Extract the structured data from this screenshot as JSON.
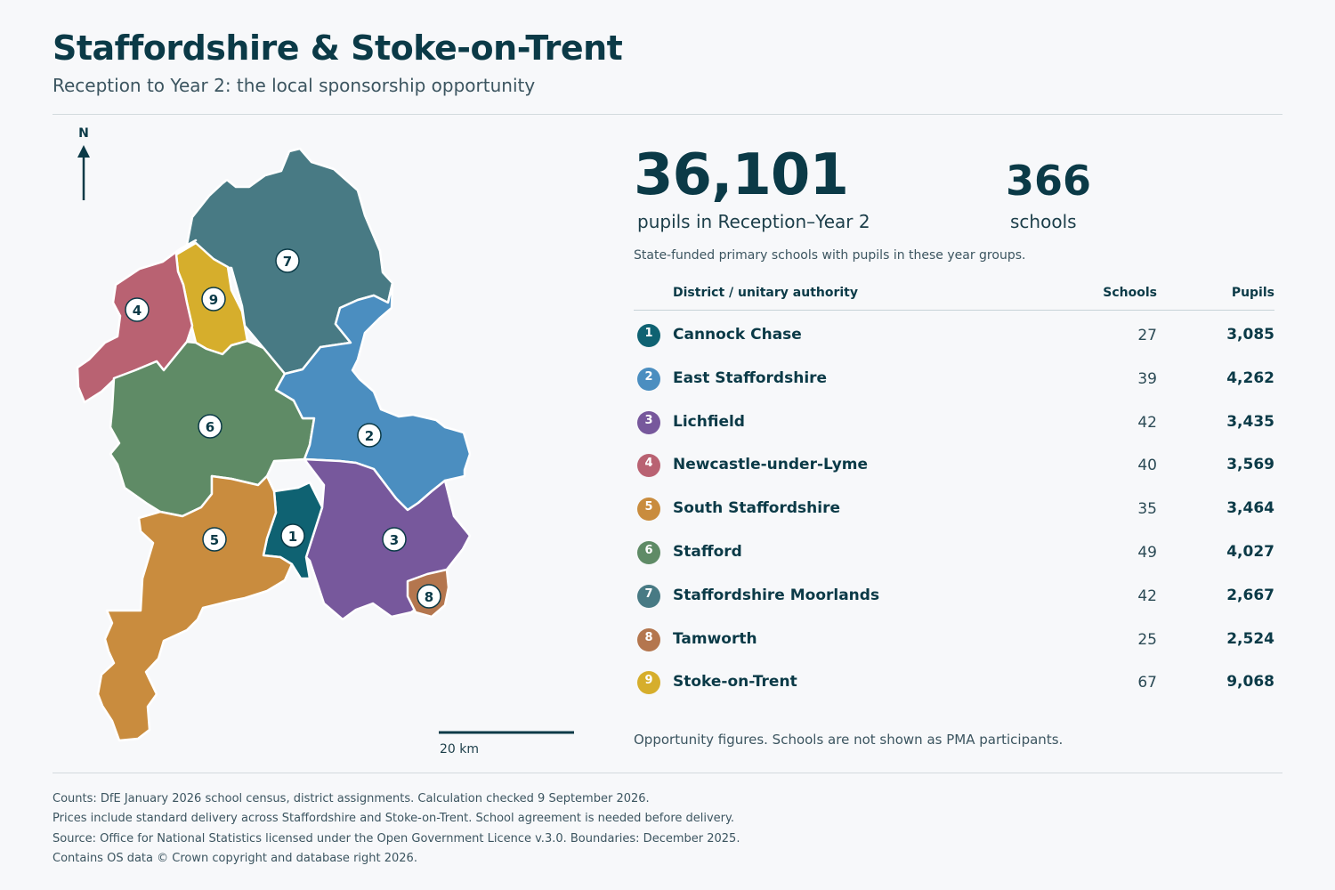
{
  "title": "Staffordshire & Stoke-on-Trent",
  "subtitle": "Reception to Year 2: the local sponsorship opportunity",
  "map": {
    "north_label": "N",
    "scale_label": "20 km"
  },
  "stats": {
    "pupils_value": "36,101",
    "pupils_label": "pupils in Reception–Year 2",
    "schools_value": "366",
    "schools_label": "schools",
    "note": "State-funded primary schools with pupils in these year groups."
  },
  "table": {
    "headers": {
      "district": "District / unitary authority",
      "schools": "Schools",
      "pupils": "Pupils"
    },
    "rows": [
      {
        "num": "1",
        "name": "Cannock Chase",
        "schools": "27",
        "pupils": "3,085",
        "color": "#0f6272"
      },
      {
        "num": "2",
        "name": "East Staffordshire",
        "schools": "39",
        "pupils": "4,262",
        "color": "#4b8ec0"
      },
      {
        "num": "3",
        "name": "Lichfield",
        "schools": "42",
        "pupils": "3,435",
        "color": "#77589c"
      },
      {
        "num": "4",
        "name": "Newcastle-under-Lyme",
        "schools": "40",
        "pupils": "3,569",
        "color": "#b96272"
      },
      {
        "num": "5",
        "name": "South Staffordshire",
        "schools": "35",
        "pupils": "3,464",
        "color": "#c98c3e"
      },
      {
        "num": "6",
        "name": "Stafford",
        "schools": "49",
        "pupils": "4,027",
        "color": "#5f8b66"
      },
      {
        "num": "7",
        "name": "Staffordshire Moorlands",
        "schools": "42",
        "pupils": "2,667",
        "color": "#487a84"
      },
      {
        "num": "8",
        "name": "Tamworth",
        "schools": "25",
        "pupils": "2,524",
        "color": "#b4764e"
      },
      {
        "num": "9",
        "name": "Stoke-on-Trent",
        "schools": "67",
        "pupils": "9,068",
        "color": "#d6ae2c"
      }
    ]
  },
  "opportunity_note": "Opportunity figures. Schools are not shown as PMA participants.",
  "footer": [
    "Counts: DfE January 2026 school census, district assignments. Calculation checked 9 September 2026.",
    "Prices include standard delivery across Staffordshire and Stoke-on-Trent. School agreement is needed before delivery.",
    "Source: Office for National Statistics licensed under the Open Government Licence v.3.0. Boundaries: December 2025.",
    "Contains OS data © Crown copyright and database right 2026."
  ]
}
